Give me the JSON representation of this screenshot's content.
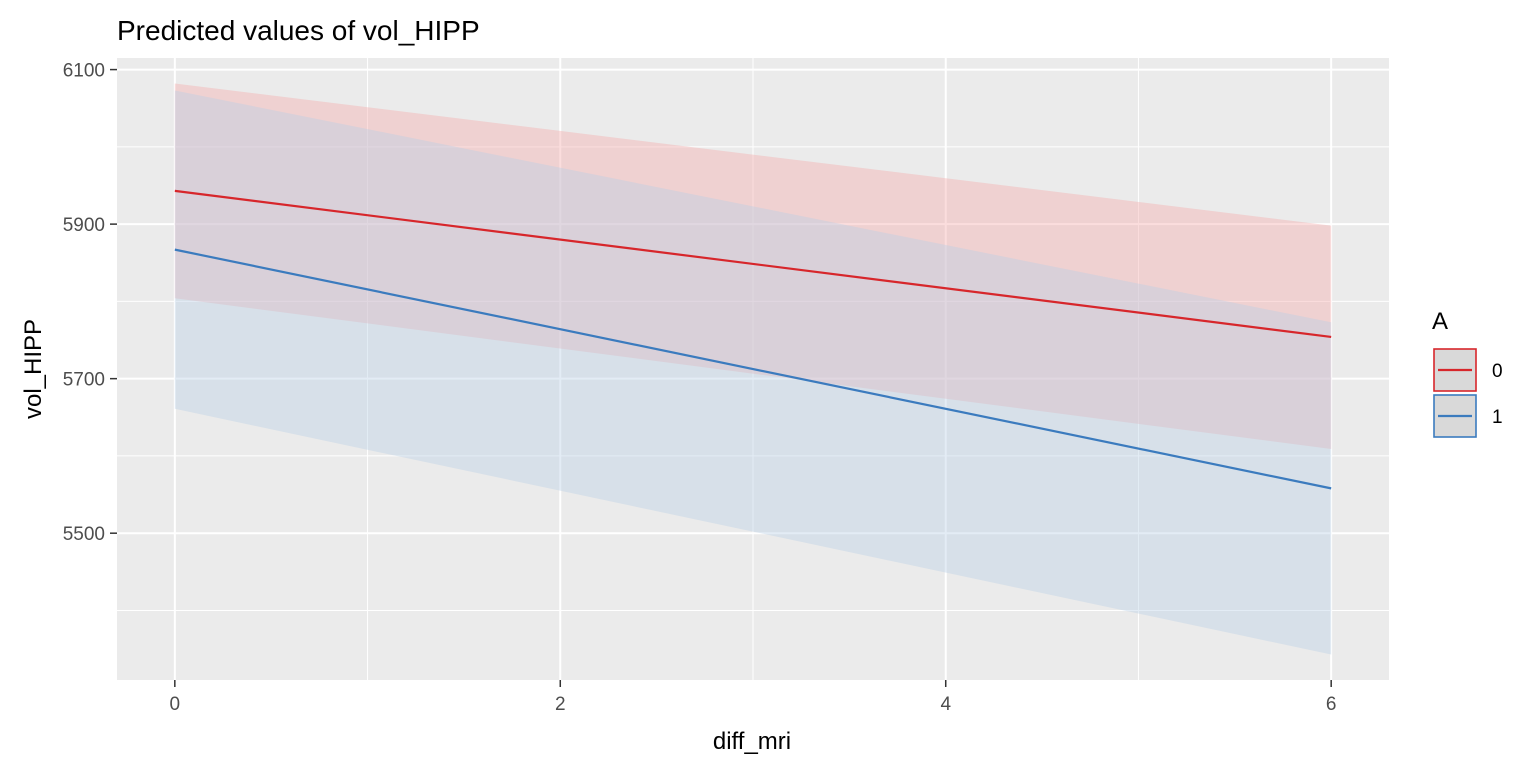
{
  "chart_data": {
    "type": "line",
    "title": "Predicted values of vol_HIPP",
    "xlabel": "diff_mri",
    "ylabel": "vol_HIPP",
    "xlim": [
      -0.3,
      6.3
    ],
    "ylim": [
      5310,
      6115
    ],
    "x_ticks": [
      0,
      2,
      4,
      6
    ],
    "y_ticks": [
      5500,
      5700,
      5900,
      6100
    ],
    "grid": true,
    "legend_title": "A",
    "legend_position": "right",
    "series": [
      {
        "name": "0",
        "color": "#d7262b",
        "fill": "#f4a9aa",
        "x": [
          0,
          6
        ],
        "y": [
          5943,
          5754
        ],
        "ci_low": [
          5804,
          5609
        ],
        "ci_high": [
          6082,
          5898
        ]
      },
      {
        "name": "1",
        "color": "#3b7bbe",
        "fill": "#b8d0e6",
        "x": [
          0,
          6
        ],
        "y": [
          5867,
          5558
        ],
        "ci_low": [
          5661,
          5343
        ],
        "ci_high": [
          6073,
          5773
        ]
      }
    ]
  }
}
